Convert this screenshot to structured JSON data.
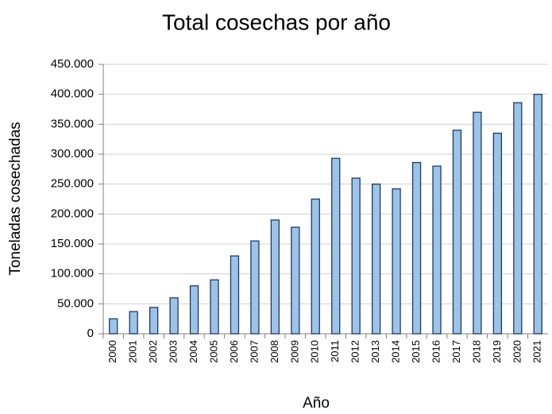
{
  "chart_data": {
    "type": "bar",
    "title": "Total cosechas por año",
    "x_label": "Año",
    "y_label": "Toneladas cosechadas",
    "categories": [
      "2000",
      "2001",
      "2002",
      "2003",
      "2004",
      "2005",
      "2006",
      "2007",
      "2008",
      "2009",
      "2010",
      "2011",
      "2012",
      "2013",
      "2014",
      "2015",
      "2016",
      "2017",
      "2018",
      "2019",
      "2020",
      "2021"
    ],
    "values": [
      25000,
      37000,
      44000,
      60000,
      80000,
      90000,
      130000,
      155000,
      190000,
      178000,
      225000,
      293000,
      260000,
      250000,
      242000,
      286000,
      280000,
      340000,
      370000,
      335000,
      386000,
      400000
    ],
    "color": "#9dc3e6",
    "edge_color": "#1f3864",
    "ylim": [
      0,
      450000
    ],
    "yticks": [
      0,
      {
        "value": 50000,
        "label": "50.000"
      },
      {
        "value": 100000,
        "label": "100.000"
      },
      {
        "value": 150000,
        "label": "150.000"
      },
      {
        "value": 200000,
        "label": "200.000"
      },
      {
        "value": 250000,
        "label": "250.000"
      },
      {
        "value": 300000,
        "label": "300.000"
      },
      {
        "value": 350000,
        "label": "350.000"
      },
      {
        "value": 400000,
        "label": "400.000"
      },
      {
        "value": 450000,
        "label": "450.000"
      }
    ],
    "grid": true
  }
}
